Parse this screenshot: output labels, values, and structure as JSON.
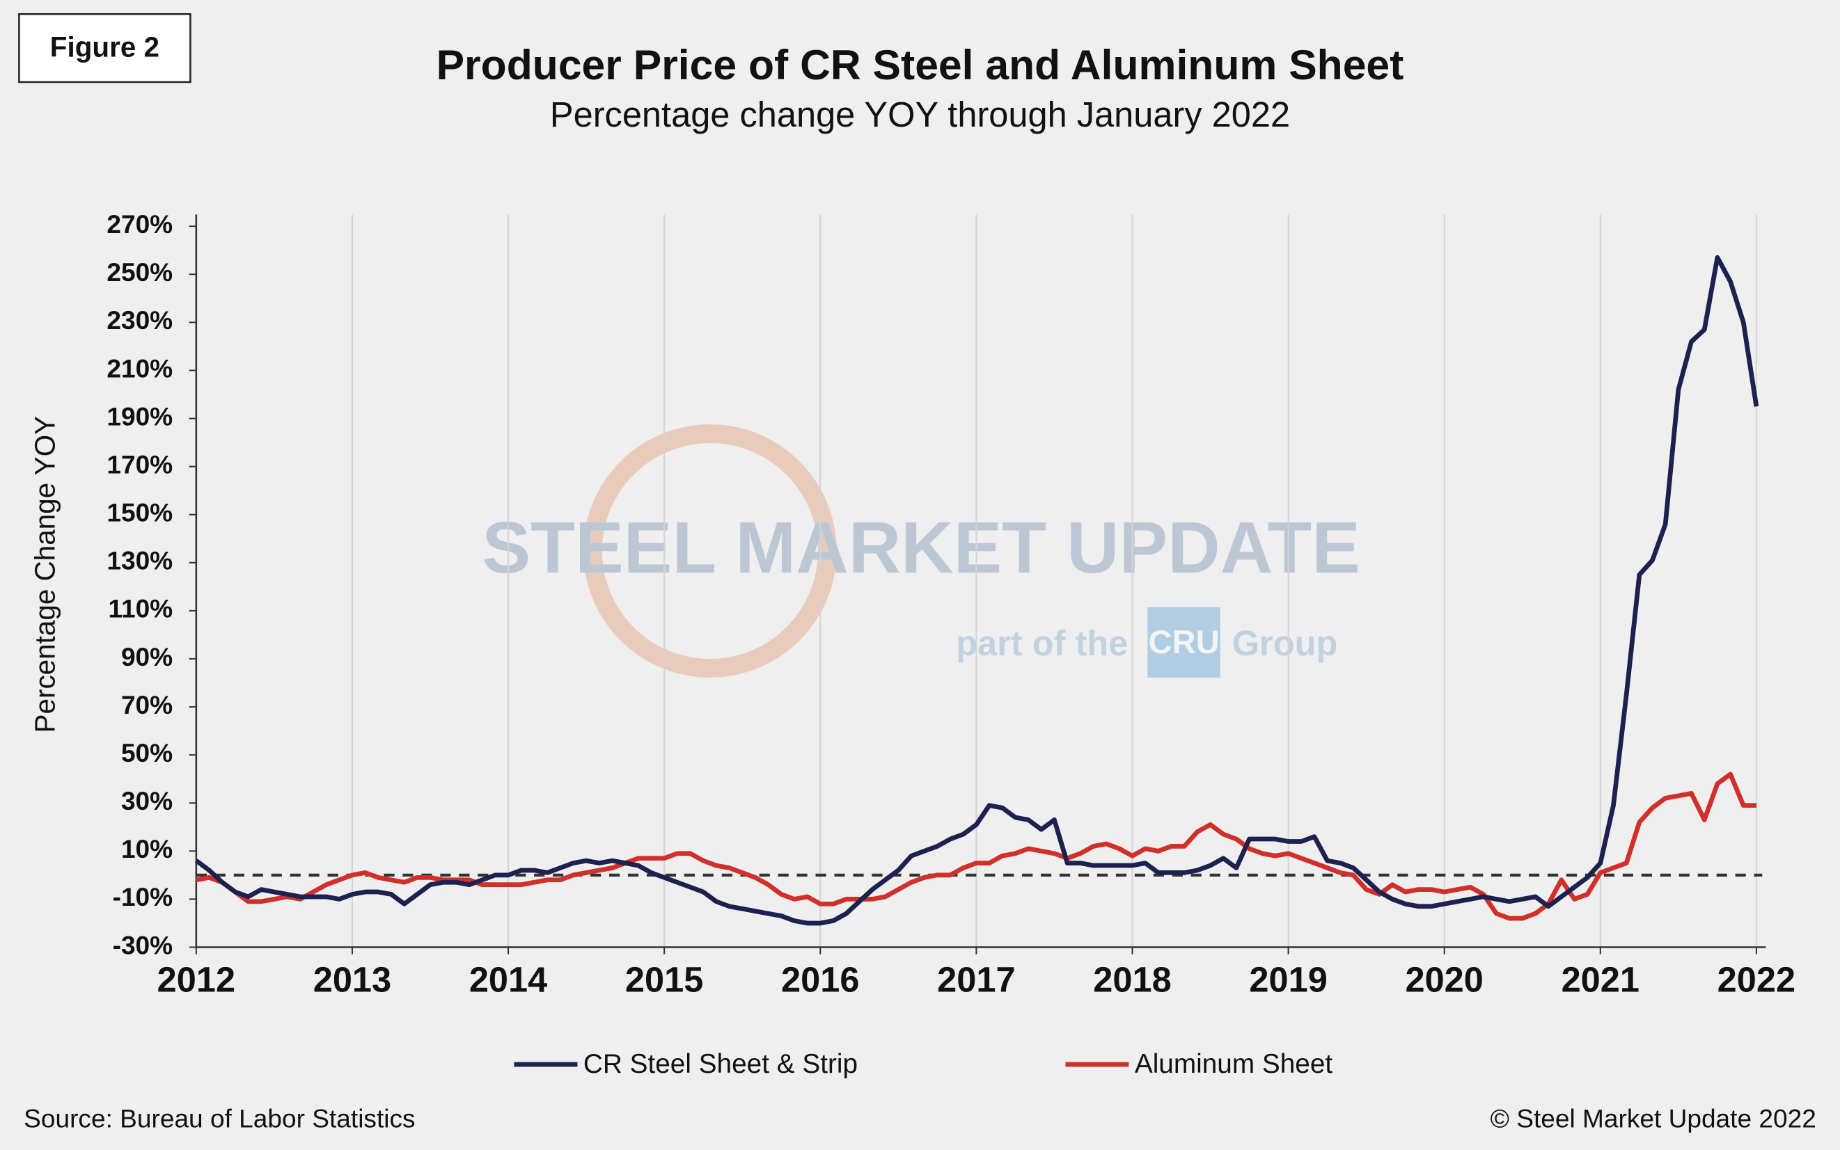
{
  "figure_label": "Figure 2",
  "source": "Source: Bureau of Labor Statistics",
  "copyright": "© Steel Market Update 2022",
  "watermark": {
    "brand": "STEEL MARKET UPDATE",
    "tagline_start": "part of the",
    "logo": "CRU",
    "tagline_end": "Group"
  },
  "chart_data": {
    "type": "line",
    "title": "Producer Price of CR Steel and Aluminum Sheet",
    "subtitle": "Percentage change YOY through January 2022",
    "y_label": "Percentage Change YOY",
    "categories": [
      "2012",
      null,
      null,
      null,
      null,
      null,
      null,
      null,
      null,
      null,
      null,
      null,
      "2013",
      null,
      null,
      null,
      null,
      null,
      null,
      null,
      null,
      null,
      null,
      null,
      "2014",
      null,
      null,
      null,
      null,
      null,
      null,
      null,
      null,
      null,
      null,
      null,
      "2015",
      null,
      null,
      null,
      null,
      null,
      null,
      null,
      null,
      null,
      null,
      null,
      "2016",
      null,
      null,
      null,
      null,
      null,
      null,
      null,
      null,
      null,
      null,
      null,
      "2017",
      null,
      null,
      null,
      null,
      null,
      null,
      null,
      null,
      null,
      null,
      null,
      "2018",
      null,
      null,
      null,
      null,
      null,
      null,
      null,
      null,
      null,
      null,
      null,
      "2019",
      null,
      null,
      null,
      null,
      null,
      null,
      null,
      null,
      null,
      null,
      null,
      "2020",
      null,
      null,
      null,
      null,
      null,
      null,
      null,
      null,
      null,
      null,
      null,
      "2021",
      null,
      null,
      null,
      null,
      null,
      null,
      null,
      null,
      null,
      null,
      null,
      "2022"
    ],
    "series": [
      {
        "name": "CR Steel Sheet & Strip",
        "color": "#1c2150",
        "values": [
          6,
          2,
          -3,
          -7,
          -9,
          -6,
          -7,
          -8,
          -9,
          -9,
          -9,
          -10,
          -8,
          -7,
          -7,
          -8,
          -12,
          -8,
          -4,
          -3,
          -3,
          -4,
          -2,
          0,
          0,
          2,
          2,
          1,
          3,
          5,
          6,
          5,
          6,
          5,
          4,
          1,
          -1,
          -3,
          -5,
          -7,
          -11,
          -13,
          -14,
          -15,
          -16,
          -17,
          -19,
          -20,
          -20,
          -19,
          -16,
          -11,
          -6,
          -2,
          2,
          8,
          10,
          12,
          15,
          17,
          21,
          29,
          28,
          24,
          23,
          19,
          23,
          5,
          5,
          4,
          4,
          4,
          4,
          5,
          1,
          1,
          1,
          2,
          4,
          7,
          3,
          15,
          15,
          15,
          14,
          14,
          16,
          6,
          5,
          3,
          -2,
          -7,
          -10,
          -12,
          -13,
          -13,
          -12,
          -11,
          -10,
          -9,
          -10,
          -11,
          -10,
          -9,
          -13,
          -9,
          -5,
          -1,
          5,
          29,
          75,
          125,
          131,
          146,
          202,
          222,
          227,
          257,
          247,
          230,
          195
        ]
      },
      {
        "name": "Aluminum Sheet",
        "color": "#d12f2a",
        "values": [
          -2,
          -1,
          -3,
          -7,
          -11,
          -11,
          -10,
          -9,
          -10,
          -7,
          -4,
          -2,
          0,
          1,
          -1,
          -2,
          -3,
          -1,
          -1,
          -2,
          -2,
          -2,
          -4,
          -4,
          -4,
          -4,
          -3,
          -2,
          -2,
          0,
          1,
          2,
          3,
          5,
          7,
          7,
          7,
          9,
          9,
          6,
          4,
          3,
          1,
          -1,
          -4,
          -8,
          -10,
          -9,
          -12,
          -12,
          -10,
          -10,
          -10,
          -9,
          -6,
          -3,
          -1,
          0,
          0,
          3,
          5,
          5,
          8,
          9,
          11,
          10,
          9,
          7,
          9,
          12,
          13,
          11,
          8,
          11,
          10,
          12,
          12,
          18,
          21,
          17,
          15,
          11,
          9,
          8,
          9,
          7,
          5,
          3,
          1,
          0,
          -6,
          -8,
          -4,
          -7,
          -6,
          -6,
          -7,
          -6,
          -5,
          -8,
          -16,
          -18,
          -18,
          -16,
          -12,
          -2,
          -10,
          -8,
          1,
          3,
          5,
          22,
          28,
          32,
          33,
          34,
          23,
          38,
          42,
          29,
          29
        ]
      }
    ],
    "ylim": [
      -30,
      270
    ],
    "yticks": [
      {
        "value": -30,
        "label": "-30%"
      },
      {
        "value": -10,
        "label": "-10%"
      },
      {
        "value": 10,
        "label": "10%"
      },
      {
        "value": 30,
        "label": "30%"
      },
      {
        "value": 50,
        "label": "50%"
      },
      {
        "value": 70,
        "label": "70%"
      },
      {
        "value": 90,
        "label": "90%"
      },
      {
        "value": 110,
        "label": "110%"
      },
      {
        "value": 130,
        "label": "130%"
      },
      {
        "value": 150,
        "label": "150%"
      },
      {
        "value": 170,
        "label": "170%"
      },
      {
        "value": 190,
        "label": "190%"
      },
      {
        "value": 210,
        "label": "210%"
      },
      {
        "value": 230,
        "label": "230%"
      },
      {
        "value": 250,
        "label": "250%"
      },
      {
        "value": 270,
        "label": "270%"
      }
    ],
    "reference_line": 0,
    "grid": "vertical",
    "legend": "bottom"
  }
}
